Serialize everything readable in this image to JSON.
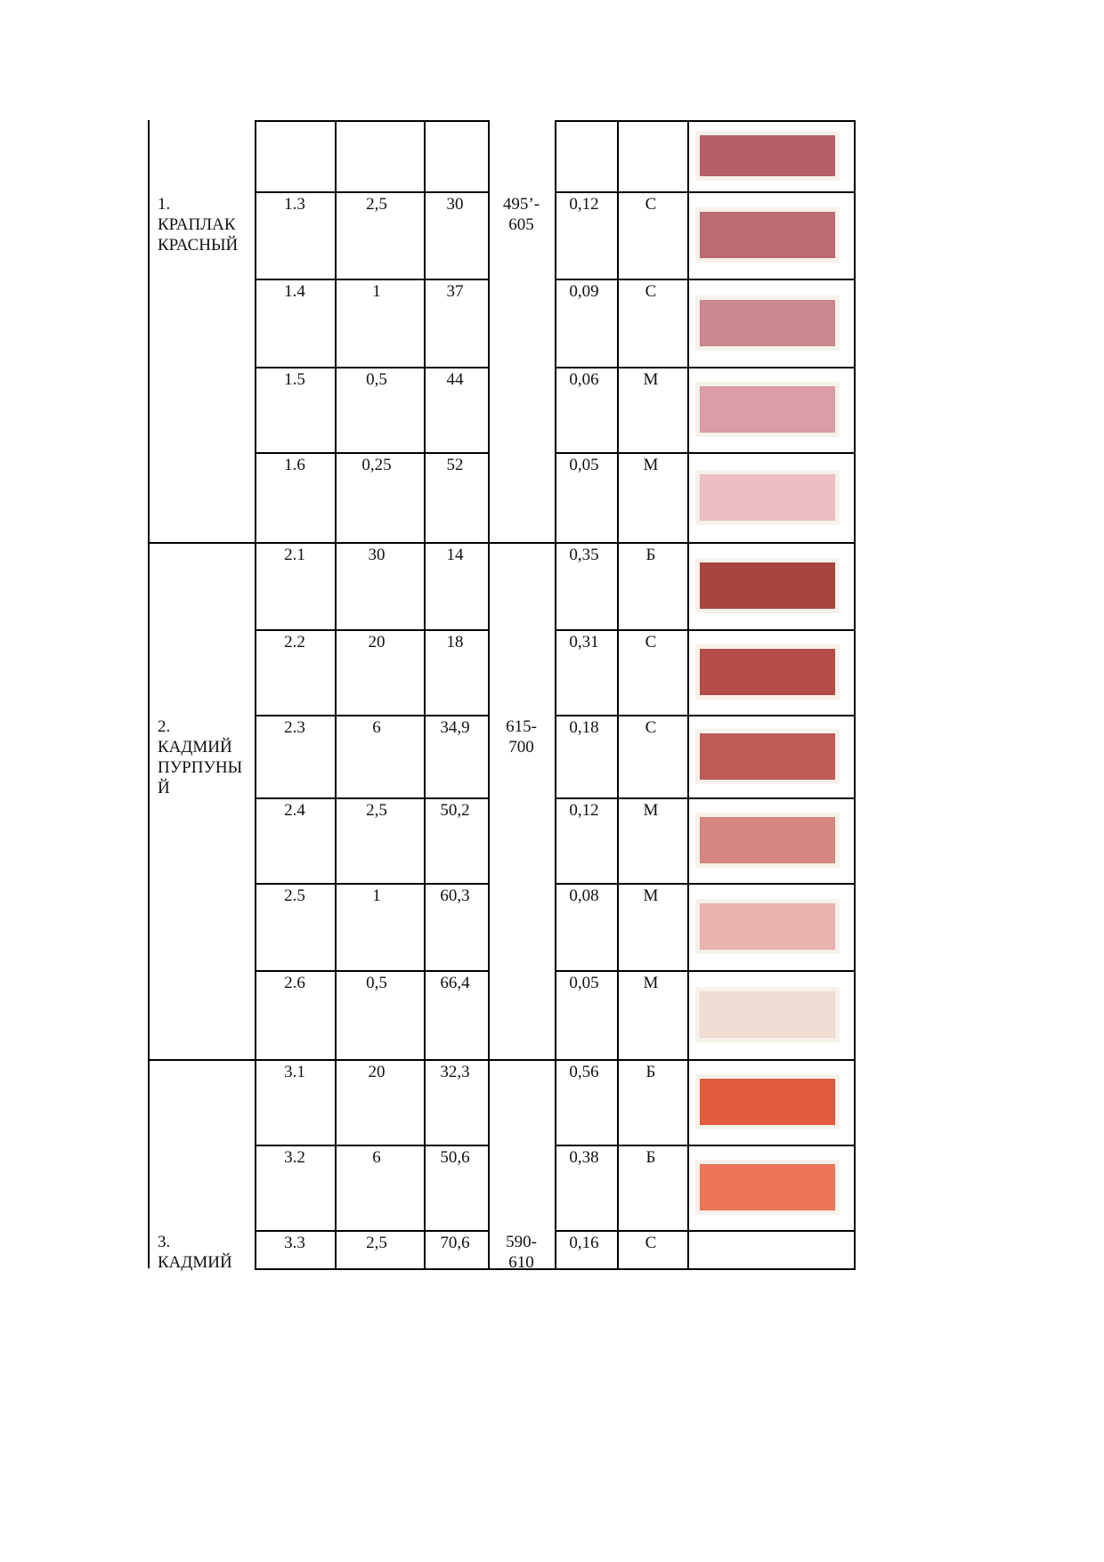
{
  "groups": [
    {
      "label": "1.\nКРАПЛАК\nКРАСНЫЙ",
      "range": "495’-\n605",
      "rows": [
        {
          "id": "",
          "conc": "",
          "val": "",
          "k": "",
          "cls": "",
          "swatch": "#b65f6b"
        },
        {
          "id": "1.3",
          "conc": "2,5",
          "val": "30",
          "k": "0,12",
          "cls": "С",
          "swatch": "#bd6a75"
        },
        {
          "id": "1.4",
          "conc": "1",
          "val": "37",
          "k": "0,09",
          "cls": "С",
          "swatch": "#cc8890"
        },
        {
          "id": "1.5",
          "conc": "0,5",
          "val": "44",
          "k": "0,06",
          "cls": "М",
          "swatch": "#dc9ea6"
        },
        {
          "id": "1.6",
          "conc": "0,25",
          "val": "52",
          "k": "0,05",
          "cls": "М",
          "swatch": "#ecc0c3"
        }
      ]
    },
    {
      "label": "2.\nКАДМИЙ\nПУРПУНЫ\nЙ",
      "range": "615-\n700",
      "rows": [
        {
          "id": "2.1",
          "conc": "30",
          "val": "14",
          "k": "0,35",
          "cls": "Б",
          "swatch": "#a6453e"
        },
        {
          "id": "2.2",
          "conc": "20",
          "val": "18",
          "k": "0,31",
          "cls": "С",
          "swatch": "#b44c47"
        },
        {
          "id": "2.3",
          "conc": "6",
          "val": "34,9",
          "k": "0,18",
          "cls": "С",
          "swatch": "#c15b57"
        },
        {
          "id": "2.4",
          "conc": "2,5",
          "val": "50,2",
          "k": "0,12",
          "cls": "М",
          "swatch": "#d68680"
        },
        {
          "id": "2.5",
          "conc": "1",
          "val": "60,3",
          "k": "0,08",
          "cls": "М",
          "swatch": "#ebb3ae"
        },
        {
          "id": "2.6",
          "conc": "0,5",
          "val": "66,4",
          "k": "0,05",
          "cls": "М",
          "swatch": "#f1ddd4"
        }
      ]
    },
    {
      "label": "3.\nКАДМИЙ",
      "range": "590-\n610",
      "rows": [
        {
          "id": "3.1",
          "conc": "20",
          "val": "32,3",
          "k": "0,56",
          "cls": "Б",
          "swatch": "#e35b3f"
        },
        {
          "id": "3.2",
          "conc": "6",
          "val": "50,6",
          "k": "0,38",
          "cls": "Б",
          "swatch": "#ee7559"
        },
        {
          "id": "3.3",
          "conc": "2,5",
          "val": "70,6",
          "k": "0,16",
          "cls": "С",
          "swatch": ""
        }
      ]
    }
  ]
}
